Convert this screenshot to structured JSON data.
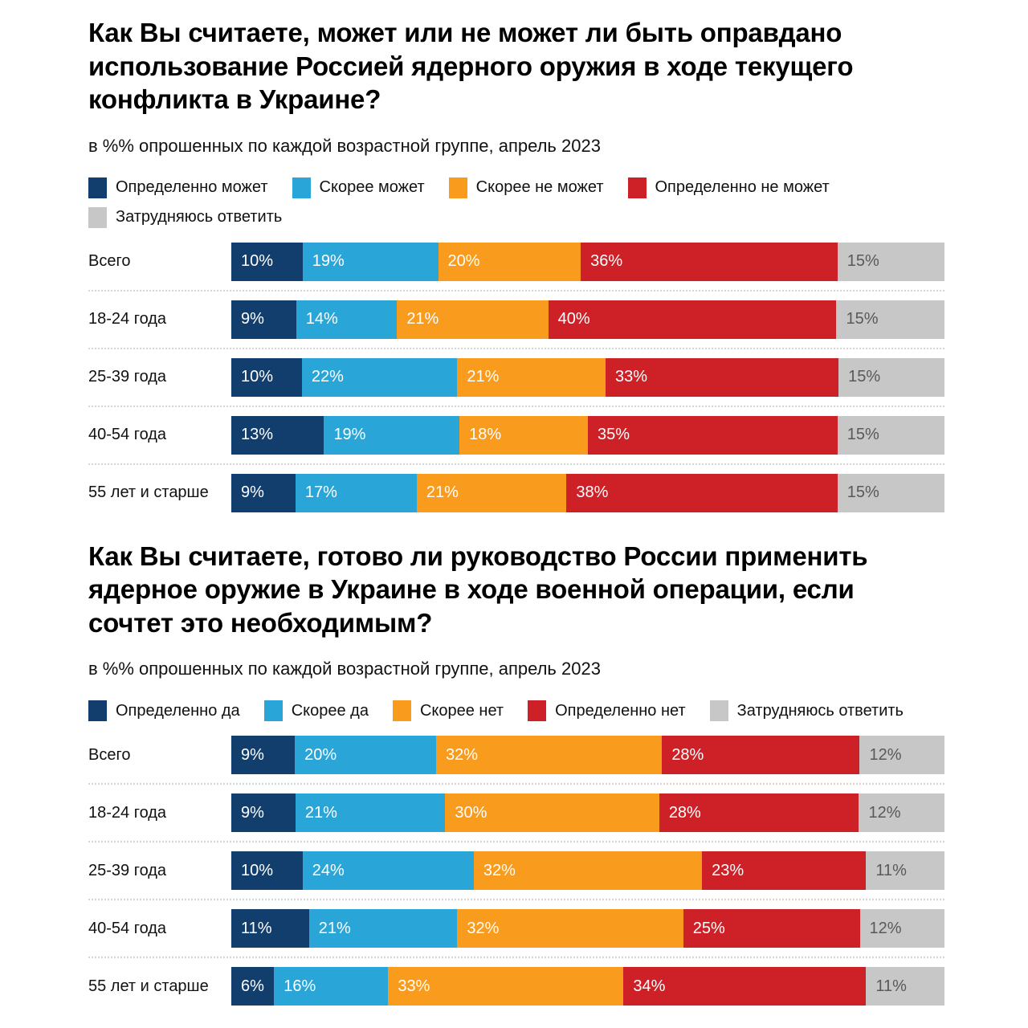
{
  "chart_data": [
    {
      "type": "bar",
      "stacked": true,
      "orientation": "horizontal",
      "title": "Как Вы считаете, может или не может ли быть оправдано использование Россией ядерного оружия в ходе текущего конфликта в Украине?",
      "subtitle": "в %% опрошенных по каждой возрастной группе, апрель 2023",
      "legend_position": "top",
      "value_suffix": "%",
      "xlim": [
        0,
        100
      ],
      "categories": [
        "Всего",
        "18-24 года",
        "25-39 года",
        "40-54 года",
        "55 лет и старше"
      ],
      "series": [
        {
          "name": "Определенно может",
          "color": "#123E6E",
          "values": [
            10,
            9,
            10,
            13,
            9
          ]
        },
        {
          "name": "Скорее может",
          "color": "#2AA5D8",
          "values": [
            19,
            14,
            22,
            19,
            17
          ]
        },
        {
          "name": "Скорее не может",
          "color": "#F99B1C",
          "values": [
            20,
            21,
            21,
            18,
            21
          ]
        },
        {
          "name": "Определенно не может",
          "color": "#CD2027",
          "values": [
            36,
            40,
            33,
            35,
            38
          ]
        },
        {
          "name": "Затрудняюсь ответить",
          "color": "#C7C7C8",
          "values": [
            15,
            15,
            15,
            15,
            15
          ]
        }
      ]
    },
    {
      "type": "bar",
      "stacked": true,
      "orientation": "horizontal",
      "title": "Как Вы считаете, готово ли руководство России применить ядерное оружие в Украине в ходе военной операции, если сочтет это необходимым?",
      "subtitle": "в %% опрошенных по каждой возрастной группе, апрель 2023",
      "legend_position": "top",
      "value_suffix": "%",
      "xlim": [
        0,
        100
      ],
      "categories": [
        "Всего",
        "18-24 года",
        "25-39 года",
        "40-54 года",
        "55 лет и старше"
      ],
      "series": [
        {
          "name": "Определенно да",
          "color": "#123E6E",
          "values": [
            9,
            9,
            10,
            11,
            6
          ]
        },
        {
          "name": "Скорее да",
          "color": "#2AA5D8",
          "values": [
            20,
            21,
            24,
            21,
            16
          ]
        },
        {
          "name": "Скорее нет",
          "color": "#F99B1C",
          "values": [
            32,
            30,
            32,
            32,
            33
          ]
        },
        {
          "name": "Определенно нет",
          "color": "#CD2027",
          "values": [
            28,
            28,
            23,
            25,
            34
          ]
        },
        {
          "name": "Затрудняюсь ответить",
          "color": "#C7C7C8",
          "values": [
            12,
            12,
            11,
            12,
            11
          ]
        }
      ]
    }
  ],
  "colors": {
    "label_on_color": "#FFFFFF",
    "label_on_gray": "#58595B",
    "separator": "#D6D6D6",
    "text": "#111111",
    "title": "#000000"
  }
}
